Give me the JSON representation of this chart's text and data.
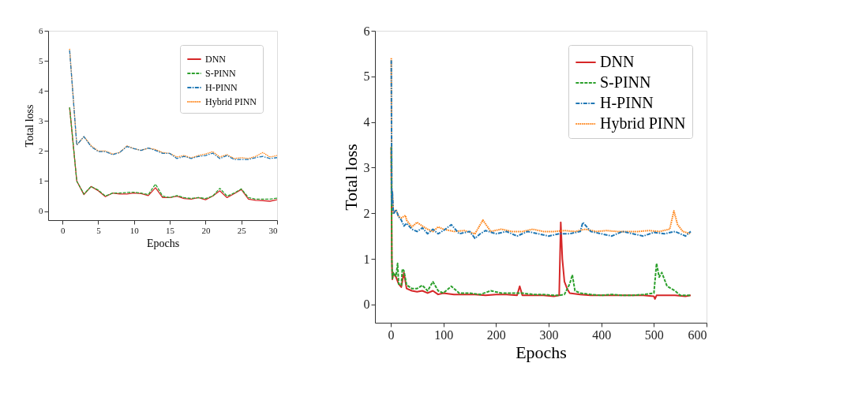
{
  "chart_data": [
    {
      "type": "line",
      "xlabel": "Epochs",
      "ylabel": "Total loss",
      "xlim": [
        -2,
        30
      ],
      "ylim": [
        -0.3,
        6
      ],
      "xticks": [
        0,
        5,
        10,
        15,
        20,
        25,
        30
      ],
      "yticks": [
        0,
        1,
        2,
        3,
        4,
        5,
        6
      ],
      "grid": false,
      "legend": "top right",
      "marker": "none",
      "x": [
        1,
        2,
        3,
        4,
        5,
        6,
        7,
        8,
        9,
        10,
        11,
        12,
        13,
        14,
        15,
        16,
        17,
        18,
        19,
        20,
        21,
        22,
        23,
        24,
        25,
        26,
        27,
        28,
        29,
        30
      ],
      "series": [
        {
          "name": "DNN",
          "color": "#d62728",
          "line_style": "solid",
          "values": [
            3.45,
            1.0,
            0.55,
            0.82,
            0.68,
            0.48,
            0.6,
            0.57,
            0.57,
            0.6,
            0.58,
            0.52,
            0.78,
            0.45,
            0.45,
            0.5,
            0.42,
            0.4,
            0.45,
            0.38,
            0.5,
            0.68,
            0.45,
            0.58,
            0.72,
            0.4,
            0.36,
            0.35,
            0.33,
            0.38
          ]
        },
        {
          "name": "S-PINN",
          "color": "#2ca02c",
          "line_style": "dashed",
          "values": [
            3.45,
            1.0,
            0.57,
            0.82,
            0.7,
            0.5,
            0.6,
            0.6,
            0.62,
            0.63,
            0.6,
            0.55,
            0.9,
            0.5,
            0.45,
            0.52,
            0.45,
            0.42,
            0.45,
            0.42,
            0.5,
            0.76,
            0.5,
            0.6,
            0.74,
            0.45,
            0.4,
            0.4,
            0.4,
            0.43
          ]
        },
        {
          "name": "H-PINN",
          "color": "#1f77b4",
          "line_style": "dashdot",
          "values": [
            5.35,
            2.2,
            2.48,
            2.15,
            1.98,
            1.98,
            1.88,
            1.95,
            2.15,
            2.08,
            2.02,
            2.1,
            2.02,
            1.92,
            1.92,
            1.75,
            1.82,
            1.75,
            1.82,
            1.85,
            1.93,
            1.75,
            1.85,
            1.72,
            1.72,
            1.72,
            1.78,
            1.82,
            1.75,
            1.78
          ]
        },
        {
          "name": "Hybrid PINN",
          "color": "#ff7f0e",
          "line_style": "dotted",
          "values": [
            5.4,
            2.2,
            2.48,
            2.18,
            2.0,
            2.0,
            1.9,
            1.95,
            2.17,
            2.08,
            2.02,
            2.1,
            2.05,
            1.95,
            1.92,
            1.8,
            1.85,
            1.77,
            1.85,
            1.9,
            1.98,
            1.8,
            1.88,
            1.75,
            1.78,
            1.75,
            1.82,
            1.95,
            1.8,
            1.85
          ]
        }
      ]
    },
    {
      "type": "line",
      "xlabel": "Epochs",
      "ylabel": "Total loss",
      "xlim": [
        -30,
        600
      ],
      "ylim": [
        -0.4,
        6
      ],
      "xticks": [
        0,
        100,
        200,
        300,
        400,
        500,
        600
      ],
      "yticks": [
        0,
        1,
        2,
        3,
        4,
        5,
        6
      ],
      "grid": false,
      "legend": "top right",
      "marker": "none",
      "series": [
        {
          "name": "DNN",
          "color": "#d62728",
          "line_style": "solid",
          "x": [
            1,
            2,
            3,
            5,
            10,
            15,
            20,
            25,
            30,
            40,
            50,
            60,
            70,
            80,
            90,
            100,
            120,
            140,
            160,
            180,
            200,
            220,
            240,
            245,
            250,
            270,
            290,
            310,
            320,
            323,
            326,
            330,
            335,
            340,
            360,
            380,
            400,
            420,
            440,
            460,
            480,
            500,
            502,
            505,
            520,
            540,
            560,
            570
          ],
          "values": [
            3.45,
            1.0,
            0.55,
            0.68,
            0.6,
            0.45,
            0.38,
            0.7,
            0.35,
            0.3,
            0.28,
            0.3,
            0.25,
            0.3,
            0.22,
            0.25,
            0.22,
            0.22,
            0.22,
            0.2,
            0.22,
            0.22,
            0.2,
            0.4,
            0.2,
            0.2,
            0.2,
            0.18,
            0.2,
            1.8,
            1.0,
            0.5,
            0.35,
            0.25,
            0.22,
            0.2,
            0.2,
            0.2,
            0.2,
            0.2,
            0.2,
            0.18,
            0.12,
            0.2,
            0.2,
            0.2,
            0.18,
            0.2
          ]
        },
        {
          "name": "S-PINN",
          "color": "#2ca02c",
          "line_style": "dashed",
          "x": [
            1,
            2,
            3,
            5,
            10,
            13,
            15,
            20,
            22,
            25,
            30,
            40,
            50,
            60,
            70,
            80,
            90,
            100,
            115,
            130,
            150,
            170,
            190,
            210,
            230,
            250,
            270,
            290,
            310,
            320,
            330,
            340,
            345,
            350,
            360,
            380,
            400,
            420,
            440,
            460,
            480,
            500,
            505,
            510,
            515,
            525,
            540,
            550,
            570
          ],
          "values": [
            3.45,
            1.0,
            0.57,
            0.7,
            0.62,
            0.9,
            0.45,
            0.42,
            0.78,
            0.74,
            0.43,
            0.35,
            0.35,
            0.42,
            0.3,
            0.5,
            0.3,
            0.25,
            0.4,
            0.25,
            0.25,
            0.22,
            0.3,
            0.25,
            0.25,
            0.25,
            0.22,
            0.22,
            0.2,
            0.2,
            0.22,
            0.45,
            0.65,
            0.3,
            0.25,
            0.22,
            0.2,
            0.22,
            0.2,
            0.2,
            0.22,
            0.25,
            0.9,
            0.6,
            0.7,
            0.4,
            0.3,
            0.2,
            0.2
          ]
        },
        {
          "name": "H-PINN",
          "color": "#1f77b4",
          "line_style": "dashdot",
          "x": [
            1,
            2,
            3,
            5,
            10,
            15,
            20,
            25,
            30,
            40,
            50,
            60,
            70,
            80,
            90,
            100,
            115,
            130,
            150,
            160,
            170,
            180,
            200,
            220,
            240,
            260,
            280,
            300,
            320,
            340,
            360,
            365,
            380,
            400,
            420,
            440,
            460,
            480,
            500,
            520,
            540,
            560,
            570
          ],
          "values": [
            5.35,
            2.2,
            2.48,
            1.98,
            2.08,
            1.92,
            1.85,
            1.72,
            1.78,
            1.65,
            1.6,
            1.68,
            1.55,
            1.65,
            1.55,
            1.62,
            1.75,
            1.55,
            1.6,
            1.45,
            1.55,
            1.62,
            1.55,
            1.6,
            1.5,
            1.6,
            1.55,
            1.5,
            1.55,
            1.55,
            1.6,
            1.8,
            1.6,
            1.55,
            1.5,
            1.6,
            1.55,
            1.5,
            1.58,
            1.55,
            1.6,
            1.5,
            1.6
          ]
        },
        {
          "name": "Hybrid PINN",
          "color": "#ff7f0e",
          "line_style": "dotted",
          "x": [
            1,
            2,
            3,
            5,
            10,
            15,
            20,
            28,
            30,
            40,
            50,
            60,
            70,
            80,
            90,
            100,
            120,
            140,
            160,
            175,
            190,
            210,
            230,
            250,
            270,
            290,
            310,
            330,
            350,
            370,
            390,
            410,
            430,
            450,
            470,
            490,
            510,
            530,
            538,
            545,
            555,
            570
          ],
          "values": [
            5.4,
            2.2,
            2.48,
            2.0,
            2.08,
            1.92,
            1.9,
            1.95,
            1.85,
            1.7,
            1.8,
            1.72,
            1.65,
            1.6,
            1.7,
            1.65,
            1.6,
            1.62,
            1.55,
            1.85,
            1.6,
            1.65,
            1.6,
            1.6,
            1.65,
            1.6,
            1.6,
            1.62,
            1.6,
            1.65,
            1.6,
            1.62,
            1.6,
            1.6,
            1.6,
            1.62,
            1.6,
            1.65,
            2.05,
            1.75,
            1.6,
            1.55
          ]
        }
      ]
    }
  ]
}
